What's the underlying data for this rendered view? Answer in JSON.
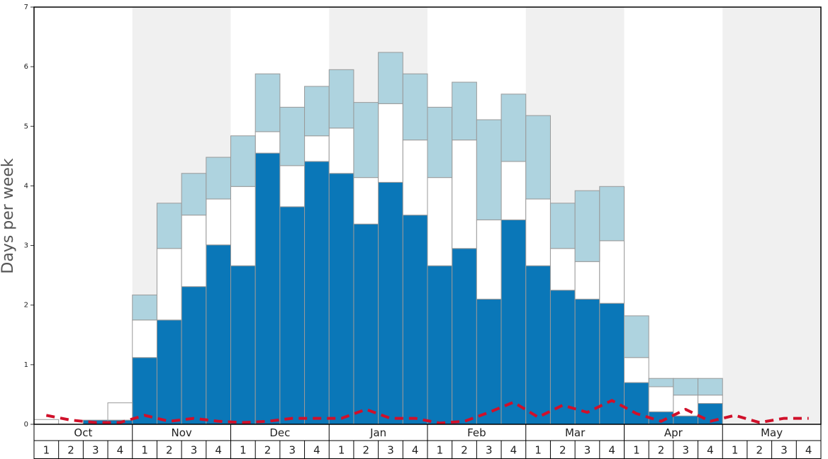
{
  "chart_data": {
    "type": "bar",
    "stacked": true,
    "y_label": "Days per week",
    "months": [
      "Oct",
      "Nov",
      "Dec",
      "Jan",
      "Feb",
      "Mar",
      "Apr",
      "May"
    ],
    "categories": [
      "1",
      "2",
      "3",
      "4",
      "1",
      "2",
      "3",
      "4",
      "1",
      "2",
      "3",
      "4",
      "1",
      "2",
      "3",
      "4",
      "1",
      "2",
      "3",
      "4",
      "1",
      "2",
      "3",
      "4",
      "1",
      "2",
      "3",
      "4",
      "1",
      "2",
      "3",
      "4"
    ],
    "ylim": [
      0,
      7
    ],
    "yticks": [
      0,
      1,
      2,
      3,
      4,
      5,
      6,
      7
    ],
    "shaded_months": [
      "Nov",
      "Jan",
      "Mar",
      "May"
    ],
    "series": [
      {
        "color": "#0a77b8",
        "values": [
          0,
          0,
          0.07,
          0.07,
          1.12,
          1.75,
          2.31,
          3.01,
          2.66,
          4.55,
          3.65,
          4.41,
          4.21,
          3.36,
          4.06,
          3.51,
          2.66,
          2.95,
          2.1,
          3.43,
          2.66,
          2.25,
          2.1,
          2.03,
          0.7,
          0.21,
          0.14,
          0.35,
          0,
          0,
          0,
          0
        ]
      },
      {
        "color": "#ffffff",
        "values": [
          0.08,
          0,
          0,
          0.29,
          0.63,
          1.2,
          1.2,
          0.77,
          1.33,
          0.36,
          0.69,
          0.43,
          0.76,
          0.78,
          1.32,
          1.26,
          1.48,
          1.82,
          1.33,
          0.98,
          1.12,
          0.7,
          0.63,
          1.05,
          0.42,
          0.42,
          0.35,
          0.14,
          0,
          0,
          0,
          0
        ]
      },
      {
        "color": "#aed3df",
        "values": [
          0,
          0,
          0,
          0,
          0.42,
          0.76,
          0.7,
          0.7,
          0.85,
          0.97,
          0.98,
          0.83,
          0.98,
          1.26,
          0.86,
          1.11,
          1.18,
          0.97,
          1.68,
          1.13,
          1.4,
          0.76,
          1.19,
          0.91,
          0.7,
          0.14,
          0.28,
          0.28,
          0,
          0,
          0,
          0
        ]
      },
      {
        "type": "line",
        "color": "#d0102a",
        "dashed": true,
        "values": [
          0.15,
          0.07,
          0.03,
          0.03,
          0.15,
          0.05,
          0.1,
          0.05,
          0.03,
          0.05,
          0.1,
          0.1,
          0.1,
          0.25,
          0.1,
          0.1,
          0.02,
          0.05,
          0.2,
          0.37,
          0.12,
          0.32,
          0.2,
          0.4,
          0.18,
          0.05,
          0.25,
          0.05,
          0.15,
          0.03,
          0.1,
          0.1
        ]
      }
    ]
  }
}
